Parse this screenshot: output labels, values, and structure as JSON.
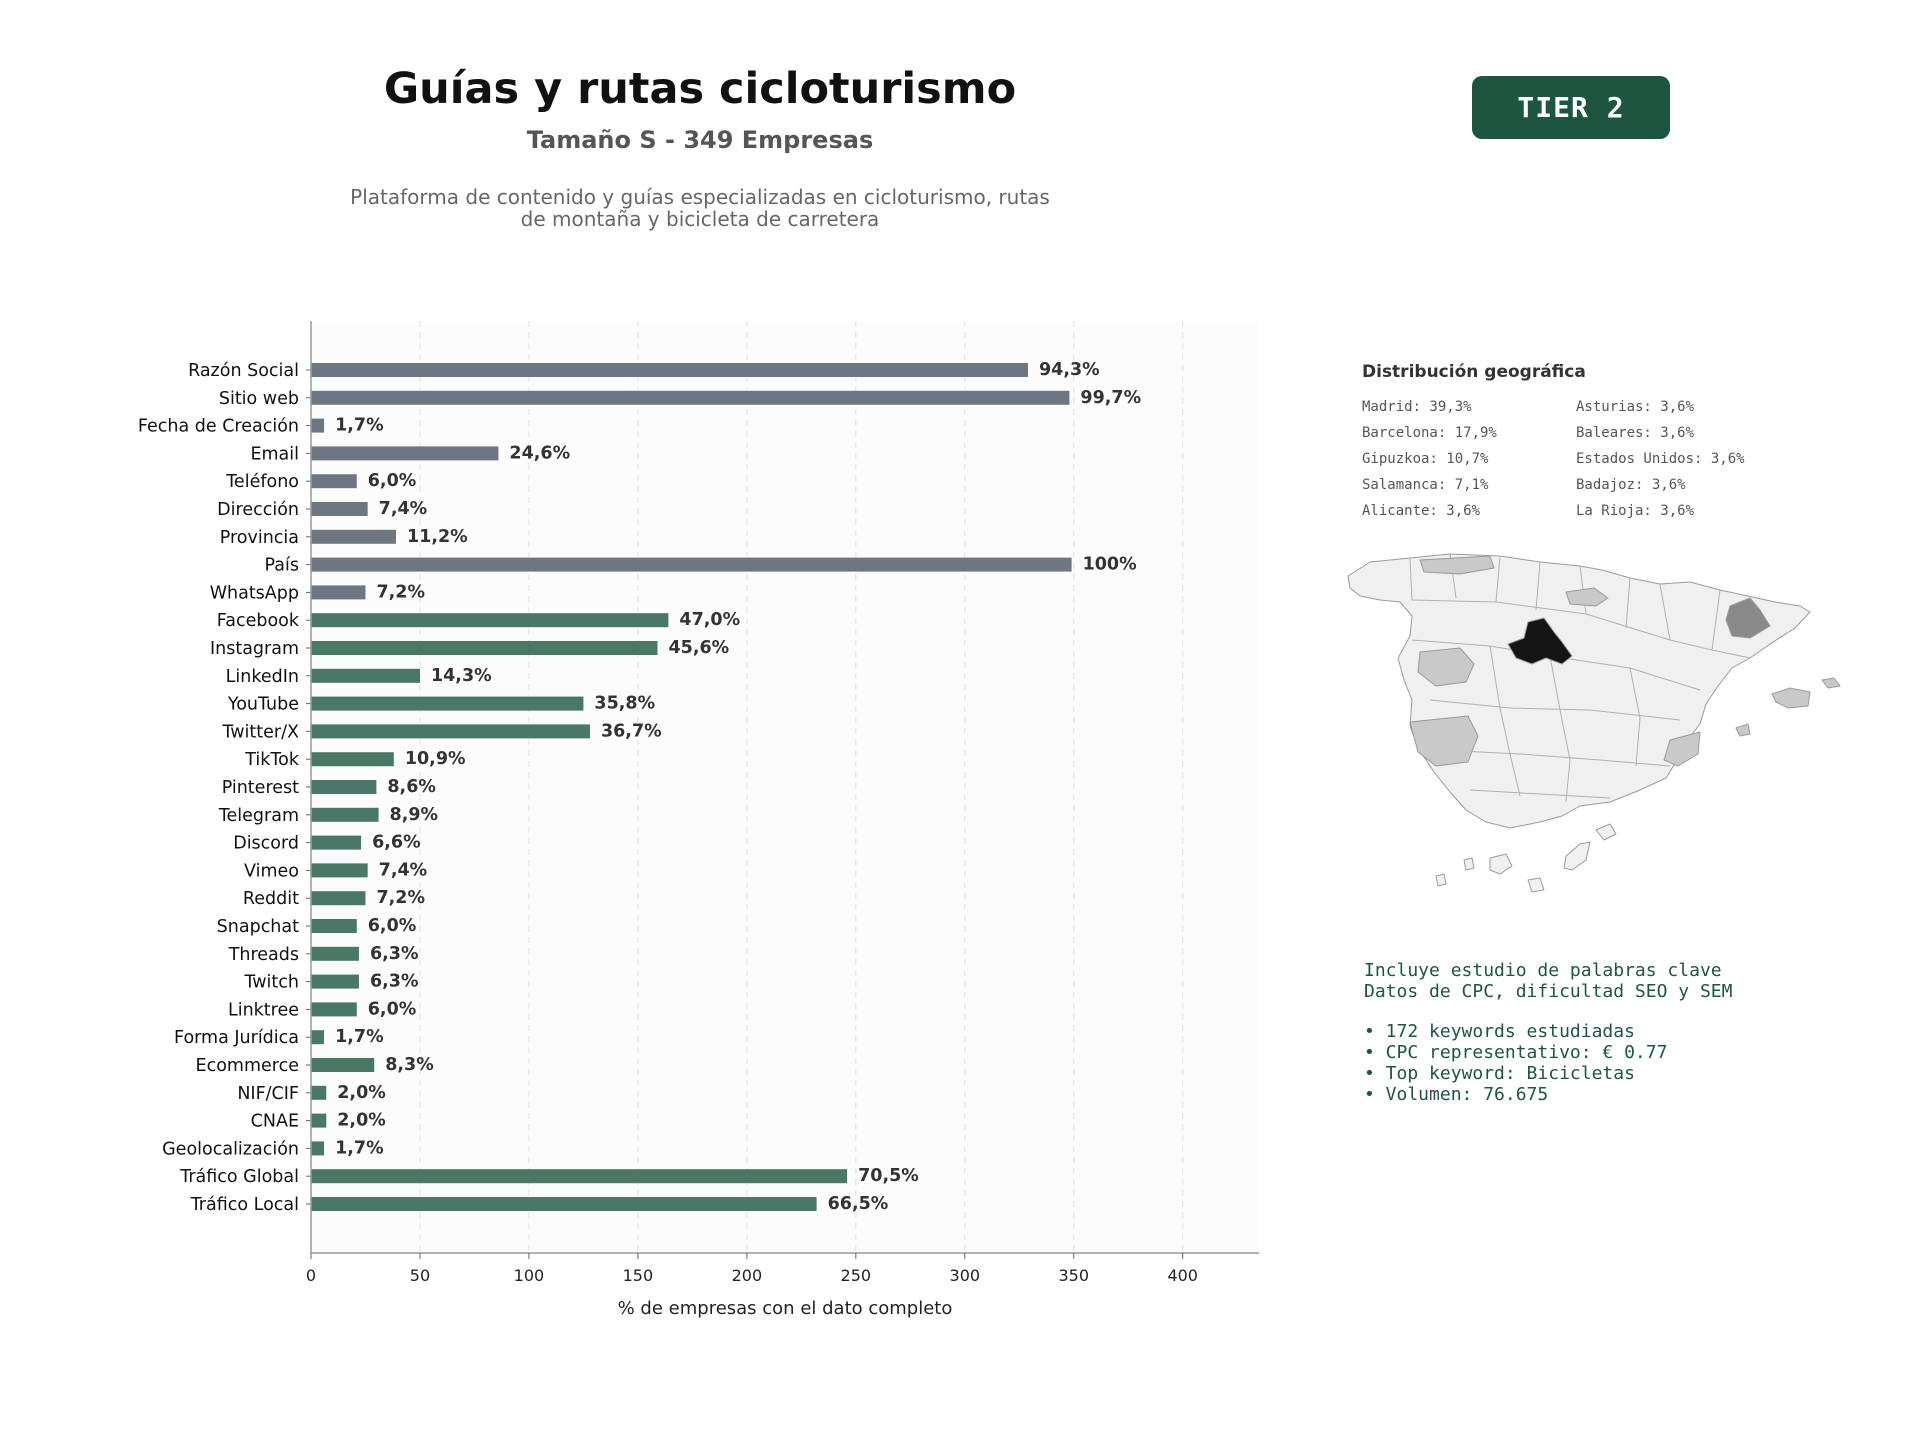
{
  "header": {
    "title": "Guías y rutas cicloturismo",
    "subtitle": "Tamaño S - 349 Empresas",
    "description_line1": "Plataforma de contenido y guías especializadas en cicloturismo, rutas",
    "description_line2": "de montaña y bicicleta de carretera",
    "tier_badge": "TIER 2"
  },
  "colors": {
    "gray_bar": "#6e7781",
    "green_bar": "#4a7766",
    "badge": "#1e5540",
    "keyword_text": "#1e5540"
  },
  "chart_data": {
    "type": "bar",
    "orientation": "horizontal",
    "xlabel": "% de empresas con el dato completo",
    "xlim": [
      0,
      435
    ],
    "xticks": [
      0,
      50,
      100,
      150,
      200,
      250,
      300,
      350,
      400
    ],
    "grid": "vertical dashed",
    "categories": [
      "Razón Social",
      "Sitio web",
      "Fecha de Creación",
      "Email",
      "Teléfono",
      "Dirección",
      "Provincia",
      "País",
      "WhatsApp",
      "Facebook",
      "Instagram",
      "LinkedIn",
      "YouTube",
      "Twitter/X",
      "TikTok",
      "Pinterest",
      "Telegram",
      "Discord",
      "Vimeo",
      "Reddit",
      "Snapchat",
      "Threads",
      "Twitch",
      "Linktree",
      "Forma Jurídica",
      "Ecommerce",
      "NIF/CIF",
      "CNAE",
      "Geolocalización",
      "Tráfico Global",
      "Tráfico Local"
    ],
    "values": [
      329,
      348,
      6,
      86,
      21,
      26,
      39,
      349,
      25,
      164,
      159,
      50,
      125,
      128,
      38,
      30,
      31,
      23,
      26,
      25,
      21,
      22,
      22,
      21,
      6,
      29,
      7,
      7,
      6,
      246,
      232
    ],
    "labels": [
      "94,3%",
      "99,7%",
      "1,7%",
      "24,6%",
      "6,0%",
      "7,4%",
      "11,2%",
      "100%",
      "7,2%",
      "47,0%",
      "45,6%",
      "14,3%",
      "35,8%",
      "36,7%",
      "10,9%",
      "8,6%",
      "8,9%",
      "6,6%",
      "7,4%",
      "7,2%",
      "6,0%",
      "6,3%",
      "6,3%",
      "6,0%",
      "1,7%",
      "8,3%",
      "2,0%",
      "2,0%",
      "1,7%",
      "70,5%",
      "66,5%"
    ],
    "color_groups": [
      "gray",
      "gray",
      "gray",
      "gray",
      "gray",
      "gray",
      "gray",
      "gray",
      "gray",
      "green",
      "green",
      "green",
      "green",
      "green",
      "green",
      "green",
      "green",
      "green",
      "green",
      "green",
      "green",
      "green",
      "green",
      "green",
      "green",
      "green",
      "green",
      "green",
      "green",
      "green",
      "green"
    ]
  },
  "geo": {
    "title": "Distribución geográfica",
    "items": [
      "Madrid: 39,3%",
      "Asturias: 3,6%",
      "Barcelona: 17,9%",
      "Baleares: 3,6%",
      "Gipuzkoa: 10,7%",
      "Estados Unidos: 3,6%",
      "Salamanca: 7,1%",
      "Badajoz: 3,6%",
      "Alicante: 3,6%",
      "La Rioja: 3,6%"
    ]
  },
  "keywords": {
    "line1": "Incluye estudio de palabras clave",
    "line2": "Datos de CPC, dificultad SEO y SEM",
    "bullets": [
      "• 172 keywords estudiadas",
      "• CPC representativo: € 0.77",
      "• Top keyword: Bicicletas",
      "• Volumen: 76.675"
    ]
  }
}
